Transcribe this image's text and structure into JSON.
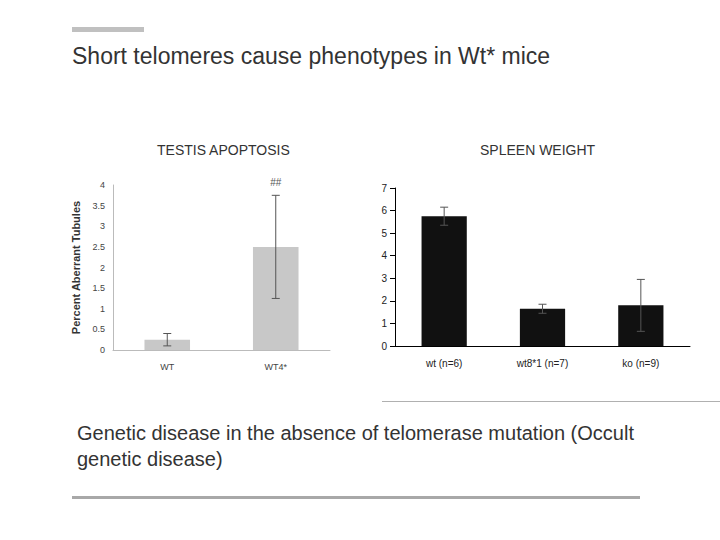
{
  "slide": {
    "title": "Short telomeres cause phenotypes in Wt* mice",
    "caption": "Genetic disease in the absence of telomerase mutation (Occult genetic disease)"
  },
  "chart_data": [
    {
      "type": "bar",
      "title": "TESTIS APOPTOSIS",
      "y_label": "Percent Aberrant Tubules",
      "categories": [
        "WT",
        "WT4*"
      ],
      "values": [
        0.25,
        2.5
      ],
      "errors": [
        0.15,
        1.25
      ],
      "color": "#c8c8c8",
      "ylim": [
        0,
        4
      ],
      "yticks": [
        0,
        0.5,
        1,
        1.5,
        2,
        2.5,
        3,
        3.5,
        4
      ],
      "grid": false,
      "annotations": [
        {
          "category": "WT4*",
          "text": "##"
        }
      ]
    },
    {
      "type": "bar",
      "title": "SPLEEN WEIGHT",
      "categories": [
        "wt (n=6)",
        "wt8*1 (n=7)",
        "ko (n=9)"
      ],
      "values": [
        5.75,
        1.65,
        1.8
      ],
      "errors": [
        0.4,
        0.2,
        1.15
      ],
      "color": "#111111",
      "ylim": [
        0,
        7
      ],
      "yticks": [
        0,
        1,
        2,
        3,
        4,
        5,
        6,
        7
      ],
      "grid": false
    }
  ]
}
